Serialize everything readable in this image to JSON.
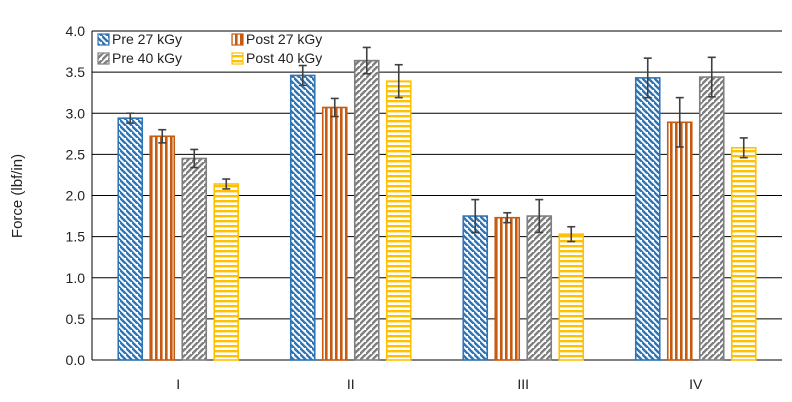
{
  "chart_data": {
    "type": "bar",
    "title": "",
    "xlabel": "",
    "ylabel": "Force (lbf/in)",
    "ylim": [
      0,
      4.0
    ],
    "yticks": [
      "0.0",
      "0.5",
      "1.0",
      "1.5",
      "2.0",
      "2.5",
      "3.0",
      "3.5",
      "4.0"
    ],
    "grid": true,
    "legend_position": "top-left",
    "categories": [
      "I",
      "II",
      "III",
      "IV"
    ],
    "series": [
      {
        "name": "Pre 27 kGy",
        "values": [
          2.94,
          3.46,
          1.75,
          3.43
        ],
        "errors": [
          0.06,
          0.12,
          0.2,
          0.24
        ],
        "color": "#2e75b6",
        "pattern": "diagonal-down"
      },
      {
        "name": "Post 27 kGy",
        "values": [
          2.72,
          3.07,
          1.73,
          2.89
        ],
        "errors": [
          0.08,
          0.11,
          0.06,
          0.3
        ],
        "color": "#c55a11",
        "pattern": "vertical"
      },
      {
        "name": "Pre 40 kGy",
        "values": [
          2.45,
          3.64,
          1.75,
          3.44
        ],
        "errors": [
          0.11,
          0.16,
          0.2,
          0.24
        ],
        "color": "#7f7f7f",
        "pattern": "diagonal-up"
      },
      {
        "name": "Post 40 kGy",
        "values": [
          2.14,
          3.39,
          1.53,
          2.58
        ],
        "errors": [
          0.06,
          0.2,
          0.09,
          0.12
        ],
        "color": "#ffc000",
        "pattern": "horizontal"
      }
    ]
  }
}
